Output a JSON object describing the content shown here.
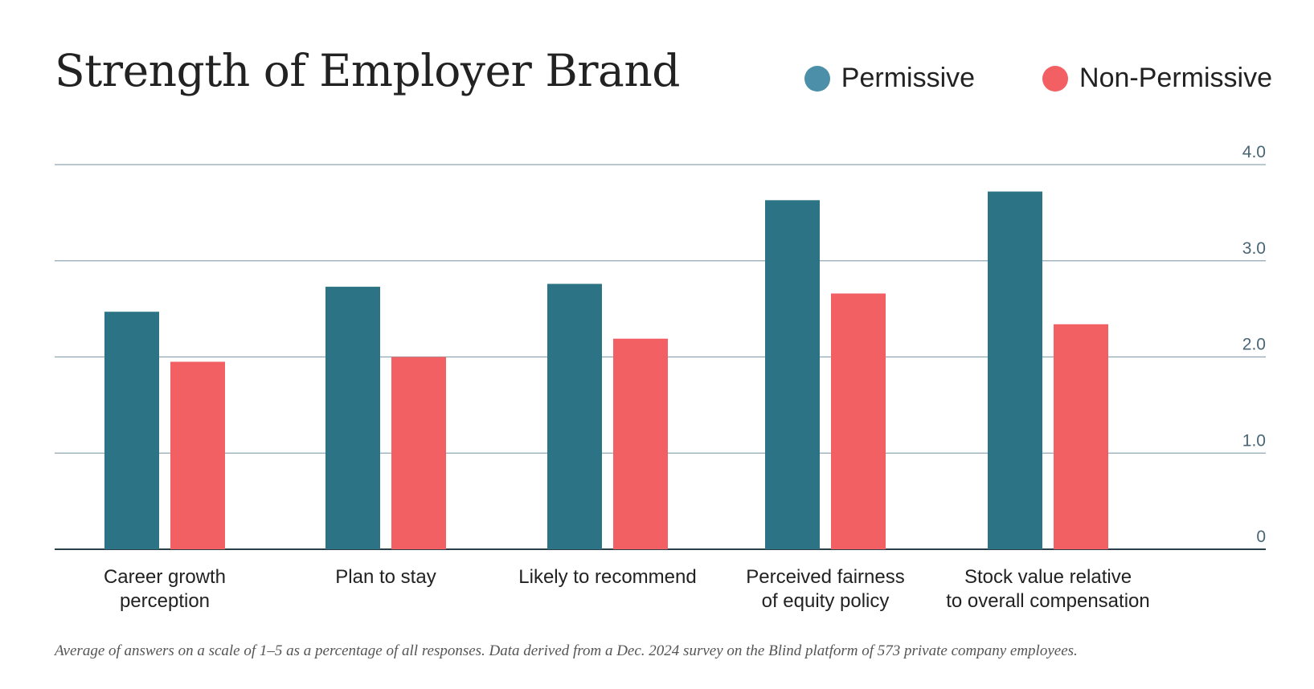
{
  "chart_data": {
    "type": "bar",
    "title": "Strength of Employer Brand",
    "categories": [
      [
        "Career growth",
        "perception"
      ],
      [
        "Plan to stay"
      ],
      [
        "Likely to recommend"
      ],
      [
        "Perceived fairness",
        "of equity policy"
      ],
      [
        "Stock value relative",
        "to overall compensation"
      ]
    ],
    "series": [
      {
        "name": "Permissive",
        "color": "#2c7385",
        "legend_color": "#4b8fa8",
        "values": [
          2.47,
          2.73,
          2.76,
          3.63,
          3.72
        ]
      },
      {
        "name": "Non-Permissive",
        "color": "#f26063",
        "legend_color": "#f26063",
        "values": [
          1.95,
          2.0,
          2.19,
          2.66,
          2.34
        ]
      }
    ],
    "ylim": [
      0,
      4.0
    ],
    "yticks": [
      {
        "value": 0,
        "label": "0"
      },
      {
        "value": 1,
        "label": "1.0"
      },
      {
        "value": 2,
        "label": "2.0"
      },
      {
        "value": 3,
        "label": "3.0"
      },
      {
        "value": 4,
        "label": "4.0"
      }
    ],
    "grid": true,
    "legend_position": "top-right",
    "yaxis_position": "right"
  },
  "footnote": "Average of answers on a scale of 1–5 as a percentage of all responses. Data derived from a Dec. 2024 survey on the Blind platform of 573 private company employees."
}
